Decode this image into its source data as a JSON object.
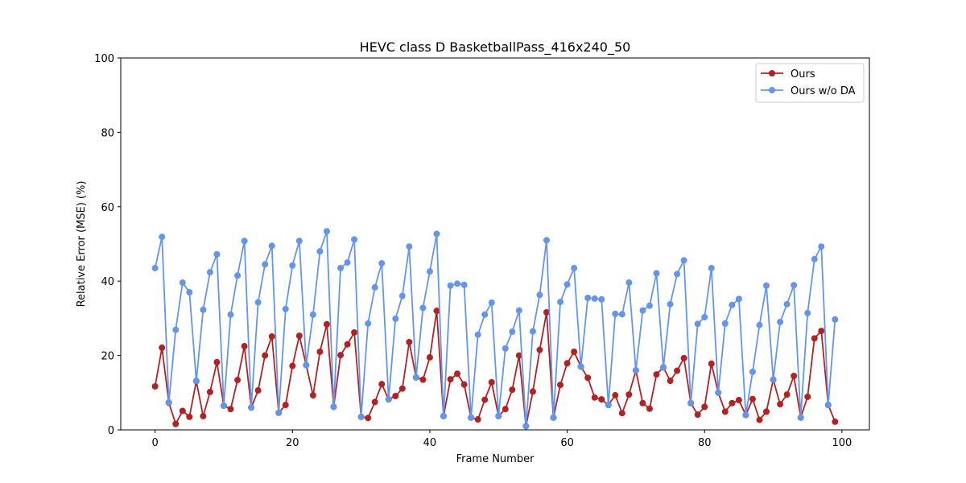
{
  "chart_data": {
    "type": "line",
    "title": "HEVC class D BasketballPass_416x240_50",
    "xlabel": "Frame Number",
    "ylabel": "Relative Error (MSE) (%)",
    "xlim": [
      -5,
      104
    ],
    "ylim": [
      0,
      100
    ],
    "xticks": [
      0,
      20,
      40,
      60,
      80,
      100
    ],
    "yticks": [
      0,
      20,
      40,
      60,
      80,
      100
    ],
    "grid": false,
    "legend_position": "top-right",
    "series": [
      {
        "name": "Ours",
        "color": "#b22222",
        "values": [
          11.7,
          22.1,
          7.3,
          1.6,
          5.1,
          3.5,
          13.1,
          3.7,
          10.2,
          18.2,
          6.5,
          5.6,
          13.4,
          22.5,
          6.0,
          10.6,
          20.0,
          25.1,
          4.6,
          6.7,
          17.2,
          25.3,
          17.4,
          9.3,
          21.0,
          28.4,
          6.2,
          20.1,
          23.0,
          26.2,
          3.5,
          3.2,
          7.5,
          12.3,
          8.2,
          9.1,
          11.1,
          23.6,
          14.1,
          13.5,
          19.5,
          32.0,
          3.7,
          13.6,
          15.1,
          12.2,
          3.3,
          2.8,
          8.1,
          12.8,
          3.7,
          5.6,
          10.8,
          20.0,
          1.0,
          10.3,
          21.5,
          31.6,
          3.3,
          12.1,
          17.9,
          21.0,
          17.0,
          14.0,
          8.7,
          8.2,
          6.7,
          9.3,
          4.5,
          9.5,
          16.0,
          7.2,
          5.7,
          14.9,
          16.8,
          13.2,
          15.9,
          19.3,
          7.2,
          4.1,
          6.2,
          17.8,
          10.0,
          4.9,
          7.2,
          8.0,
          4.0,
          8.3,
          2.7,
          4.9,
          13.5,
          6.9,
          9.5,
          14.5,
          3.3,
          8.9,
          24.6,
          26.6,
          6.7,
          2.2
        ]
      },
      {
        "name": "Ours w/o DA",
        "color": "#6495ed",
        "values": [
          43.5,
          51.9,
          7.4,
          26.9,
          39.6,
          37.0,
          13.2,
          32.3,
          42.4,
          47.2,
          6.5,
          31.0,
          41.5,
          50.8,
          6.0,
          34.3,
          44.5,
          49.5,
          4.6,
          32.5,
          44.2,
          50.8,
          17.4,
          31.0,
          48.0,
          53.4,
          6.2,
          43.5,
          45.0,
          51.2,
          3.5,
          28.6,
          38.3,
          44.8,
          8.2,
          29.9,
          36.0,
          49.3,
          14.1,
          32.8,
          42.6,
          52.7,
          3.7,
          38.8,
          39.3,
          39.0,
          3.3,
          25.6,
          31.0,
          34.2,
          3.7,
          21.9,
          26.4,
          32.1,
          1.0,
          26.5,
          36.3,
          51.0,
          3.3,
          34.4,
          39.1,
          43.5,
          17.0,
          35.5,
          35.3,
          35.1,
          6.7,
          31.2,
          31.1,
          39.6,
          16.0,
          32.1,
          33.4,
          42.1,
          16.8,
          33.8,
          41.9,
          45.6,
          7.2,
          28.5,
          30.3,
          43.5,
          10.0,
          28.6,
          33.6,
          35.2,
          4.0,
          15.6,
          28.2,
          38.8,
          13.5,
          29.0,
          33.8,
          38.9,
          3.3,
          31.4,
          45.9,
          49.3,
          6.7,
          29.7
        ]
      }
    ]
  }
}
